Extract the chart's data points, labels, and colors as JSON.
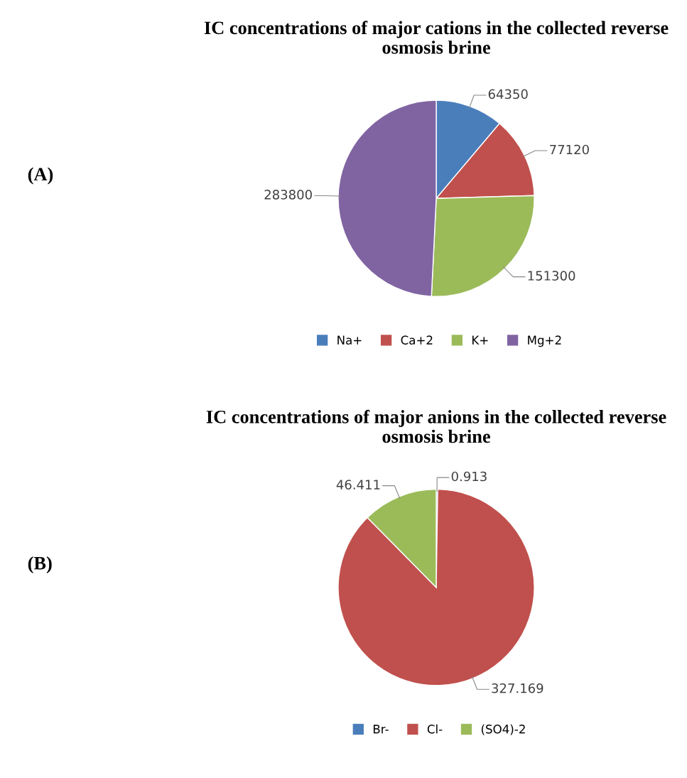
{
  "chart_data": [
    {
      "type": "pie",
      "title": "IC concentrations of major cations in the collected reverse osmosis brine",
      "annotations": [
        "(A)"
      ],
      "categories": [
        "Na+",
        "Ca+2",
        "K+",
        "Mg+2"
      ],
      "values": [
        64350,
        77120,
        151300,
        283800
      ],
      "colors": [
        "#4a7ebb",
        "#c0504d",
        "#9bbb59",
        "#8064a2"
      ],
      "data_labels": true,
      "legend": "bottom"
    },
    {
      "type": "pie",
      "title": "IC concentrations of major anions in the collected reverse osmosis brine",
      "annotations": [
        "(B)"
      ],
      "categories": [
        "Br-",
        "Cl-",
        "(SO4)-2"
      ],
      "values": [
        0.913,
        327.169,
        46.411
      ],
      "colors": [
        "#4a7ebb",
        "#c0504d",
        "#9bbb59"
      ],
      "data_labels": true,
      "legend": "bottom"
    }
  ]
}
